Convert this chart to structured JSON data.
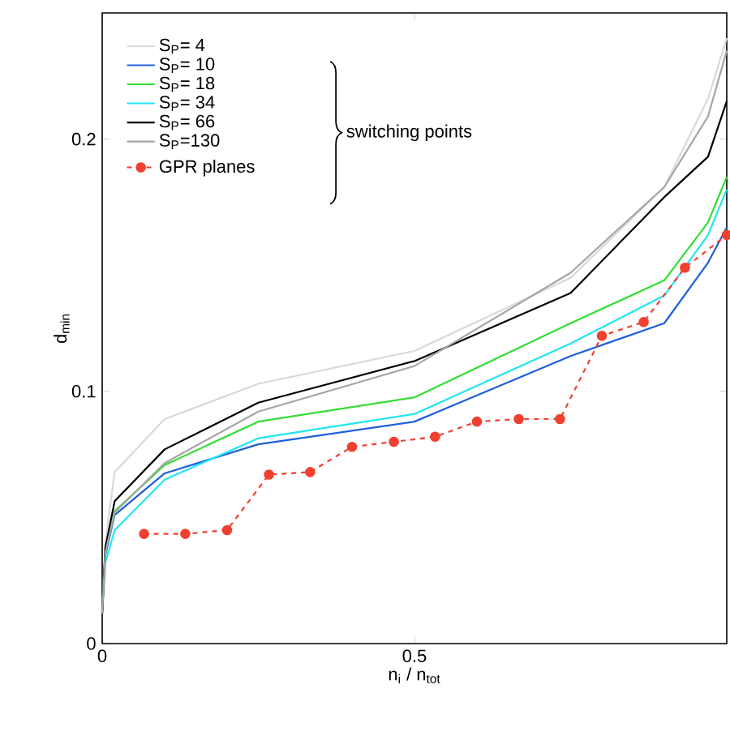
{
  "chart_data": {
    "type": "line",
    "xlabel": "n$_{i}$ / n$_{tot}$",
    "ylabel": "d$_{min}$",
    "xlim": [
      0,
      1
    ],
    "ylim": [
      0,
      0.25
    ],
    "xticks": [
      0,
      0.5
    ],
    "yticks": [
      0,
      0.1,
      0.2
    ],
    "legend": "top left",
    "grid": false,
    "annotations": [
      "switching points"
    ],
    "series": [
      {
        "name": "S$_{P}$=  4",
        "color": "#d9d9d9",
        "x": [
          0,
          0.005,
          0.02,
          0.1,
          0.25,
          0.5,
          0.75,
          0.9,
          0.97,
          1
        ],
        "values": [
          0.012,
          0.04,
          0.068,
          0.089,
          0.103,
          0.116,
          0.145,
          0.181,
          0.216,
          0.24
        ]
      },
      {
        "name": "S$_{P}$= 10",
        "color": "#1f5fdc",
        "x": [
          0,
          0.005,
          0.02,
          0.1,
          0.25,
          0.5,
          0.75,
          0.9,
          0.97,
          1
        ],
        "values": [
          0.012,
          0.035,
          0.051,
          0.0675,
          0.079,
          0.088,
          0.114,
          0.127,
          0.151,
          0.165
        ]
      },
      {
        "name": "S$_{P}$= 18",
        "color": "#33dd33",
        "x": [
          0,
          0.005,
          0.02,
          0.1,
          0.25,
          0.5,
          0.75,
          0.9,
          0.97,
          1
        ],
        "values": [
          0.012,
          0.036,
          0.0525,
          0.0708,
          0.088,
          0.0976,
          0.127,
          0.144,
          0.167,
          0.185
        ]
      },
      {
        "name": "S$_{P}$= 34",
        "color": "#22e5f0",
        "x": [
          0,
          0.005,
          0.02,
          0.1,
          0.25,
          0.5,
          0.75,
          0.9,
          0.97,
          1
        ],
        "values": [
          0.012,
          0.032,
          0.045,
          0.065,
          0.0814,
          0.091,
          0.119,
          0.138,
          0.162,
          0.18
        ]
      },
      {
        "name": "S$_{P}$= 66",
        "color": "#000000",
        "x": [
          0,
          0.005,
          0.02,
          0.1,
          0.25,
          0.5,
          0.75,
          0.9,
          0.97,
          1
        ],
        "values": [
          0.012,
          0.038,
          0.0565,
          0.077,
          0.0955,
          0.112,
          0.139,
          0.177,
          0.193,
          0.215
        ]
      },
      {
        "name": "S$_{P}$=130",
        "color": "#a6a6a6",
        "x": [
          0,
          0.005,
          0.02,
          0.1,
          0.25,
          0.5,
          0.75,
          0.9,
          0.97,
          1
        ],
        "values": [
          0.012,
          0.036,
          0.052,
          0.0716,
          0.092,
          0.11,
          0.147,
          0.181,
          0.209,
          0.235
        ]
      },
      {
        "name": "GPR planes",
        "color": "#f04030",
        "marker": "circle",
        "line_style": "dashed",
        "x": [
          0.067,
          0.133,
          0.2,
          0.267,
          0.333,
          0.4,
          0.467,
          0.533,
          0.6,
          0.667,
          0.733,
          0.8,
          0.867,
          0.933,
          1
        ],
        "values": [
          0.0435,
          0.0435,
          0.045,
          0.067,
          0.068,
          0.078,
          0.08,
          0.082,
          0.088,
          0.089,
          0.089,
          0.122,
          0.1275,
          0.149,
          0.162
        ]
      }
    ]
  }
}
